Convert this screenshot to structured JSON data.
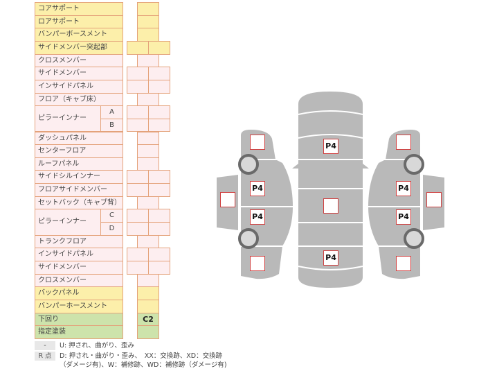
{
  "rows": [
    {
      "label": "コアサポート",
      "color": "yellow",
      "cells": 1
    },
    {
      "label": "ロアサポート",
      "color": "yellow",
      "cells": 1
    },
    {
      "label": "バンパーボースメント",
      "color": "yellow",
      "cells": 1
    },
    {
      "label": "サイドメンバー突起部",
      "color": "yellow",
      "cells": 2
    },
    {
      "label": "クロスメンバー",
      "color": "pink",
      "cells": 1
    },
    {
      "label": "サイドメンバー",
      "color": "pink",
      "cells": 2
    },
    {
      "label": "インサイドパネル",
      "color": "pink",
      "cells": 2
    },
    {
      "label": "フロア（キャブ床）",
      "color": "pink",
      "cells": 1
    },
    {
      "label": "ピラーインナー",
      "sub": "A",
      "color": "pink",
      "cells": 2
    },
    {
      "label": "",
      "sub": "B",
      "color": "pink",
      "cells": 2
    },
    {
      "label": "ダッシュパネル",
      "color": "pink",
      "cells": 1
    },
    {
      "label": "センターフロア",
      "color": "pink",
      "cells": 1
    },
    {
      "label": "ルーフパネル",
      "color": "pink",
      "cells": 1
    },
    {
      "label": "サイドシルインナー",
      "color": "pink",
      "cells": 2
    },
    {
      "label": "フロアサイドメンバー",
      "color": "pink",
      "cells": 2
    },
    {
      "label": "セットバック（キャブ背）",
      "color": "pink",
      "cells": 1
    },
    {
      "label": "ピラーインナー",
      "sub": "C",
      "color": "pink",
      "cells": 2
    },
    {
      "label": "",
      "sub": "D",
      "color": "pink",
      "cells": 2
    },
    {
      "label": "トランクフロア",
      "color": "pink",
      "cells": 1
    },
    {
      "label": "インサイドパネル",
      "color": "pink",
      "cells": 2
    },
    {
      "label": "サイドメンバー",
      "color": "pink",
      "cells": 2
    },
    {
      "label": "クロスメンバー",
      "color": "pink",
      "cells": 1
    },
    {
      "label": "バックパネル",
      "color": "yellow",
      "cells": 1
    },
    {
      "label": "バンパーホースメント",
      "color": "yellow",
      "cells": 1
    },
    {
      "label": "下回り",
      "color": "green",
      "cells": 1,
      "value": "C2"
    },
    {
      "label": "指定塗装",
      "color": "green",
      "cells": 1
    }
  ],
  "colors": {
    "yellow": "#fcefaa",
    "pink": "#fdeef0",
    "green": "#cde3ab",
    "border": "#e4a27a",
    "car": "#b9b9b9",
    "mark_border": "#d04040"
  },
  "diagram": {
    "center_top": "P4",
    "center_middle": "",
    "center_bottom": "P4",
    "left_front": "",
    "left_door": "",
    "left_mid_front": "P4",
    "left_mid_rear": "P4",
    "left_rear": "",
    "right_front": "",
    "right_door": "",
    "right_mid_front": "P4",
    "right_mid_rear": "P4",
    "right_rear": ""
  },
  "legend": [
    {
      "key": "-",
      "text": "U: 押され、曲がり、歪み"
    },
    {
      "key": "R 点",
      "text": "D: 押され・曲がり・歪み、　XX：交換跡、XD：交換跡"
    },
    {
      "key": "",
      "text": "（ダメージ有)、W：補修跡、WD：補修跡（ダメージ有)"
    }
  ]
}
